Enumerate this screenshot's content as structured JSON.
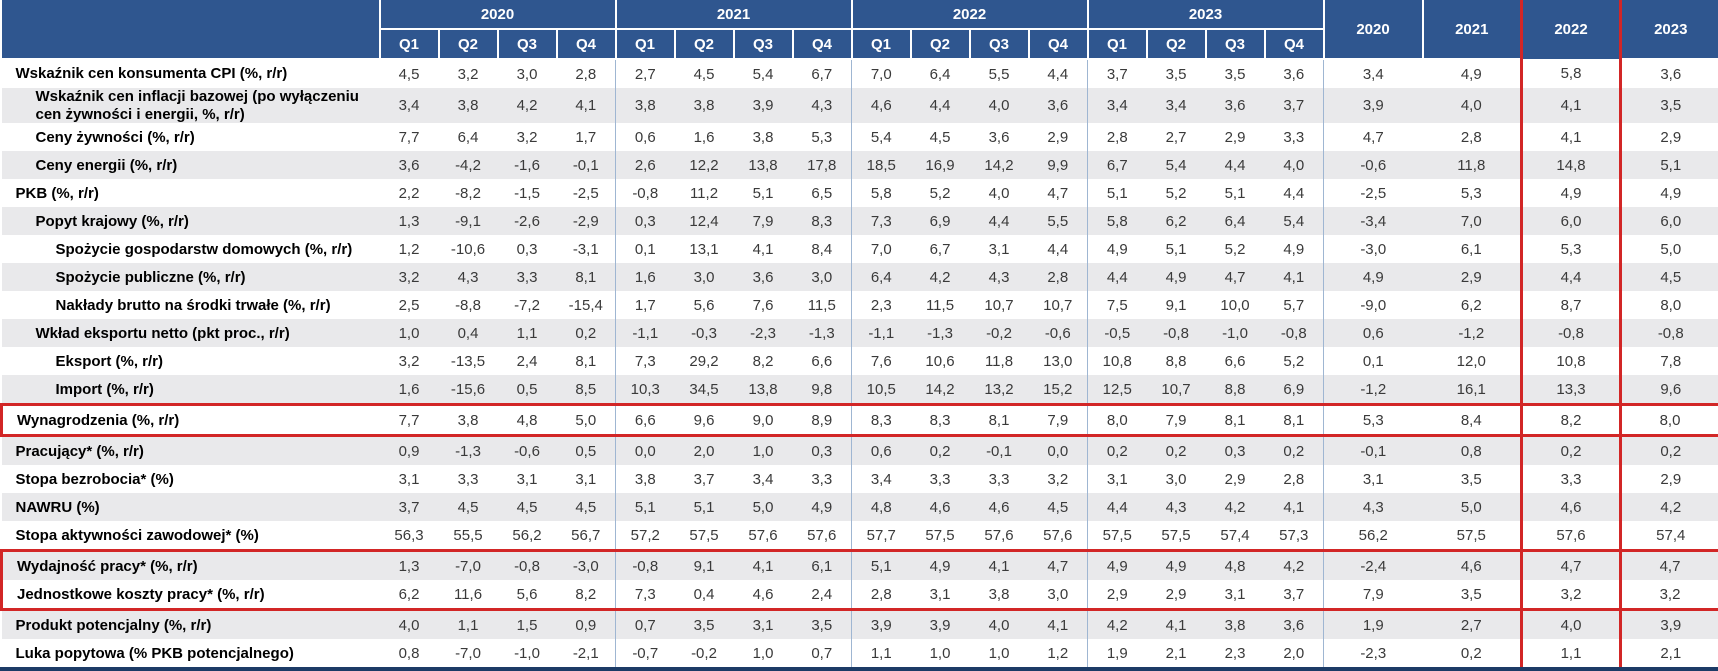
{
  "table": {
    "corner_label": "",
    "year_groups": [
      {
        "year": "2020",
        "quarters": [
          "Q1",
          "Q2",
          "Q3",
          "Q4"
        ]
      },
      {
        "year": "2021",
        "quarters": [
          "Q1",
          "Q2",
          "Q3",
          "Q4"
        ]
      },
      {
        "year": "2022",
        "quarters": [
          "Q1",
          "Q2",
          "Q3",
          "Q4"
        ]
      },
      {
        "year": "2023",
        "quarters": [
          "Q1",
          "Q2",
          "Q3",
          "Q4"
        ]
      }
    ],
    "annual_columns": [
      {
        "year": "2020",
        "highlighted": false
      },
      {
        "year": "2021",
        "highlighted": false
      },
      {
        "year": "2022",
        "highlighted": true
      },
      {
        "year": "2023",
        "highlighted": false
      }
    ],
    "rows": [
      {
        "label": "Wskaźnik cen konsumenta CPI (%, r/r)",
        "indent": 0,
        "box": [],
        "values": [
          "4,5",
          "3,2",
          "3,0",
          "2,8",
          "2,7",
          "4,5",
          "5,4",
          "6,7",
          "7,0",
          "6,4",
          "5,5",
          "4,4",
          "3,7",
          "3,5",
          "3,5",
          "3,6",
          "3,4",
          "4,9",
          "5,8",
          "3,6"
        ]
      },
      {
        "label": "Wskaźnik cen inflacji bazowej (po wyłączeniu cen żywności i energii, %, r/r)",
        "indent": 1,
        "box": [],
        "values": [
          "3,4",
          "3,8",
          "4,2",
          "4,1",
          "3,8",
          "3,8",
          "3,9",
          "4,3",
          "4,6",
          "4,4",
          "4,0",
          "3,6",
          "3,4",
          "3,4",
          "3,6",
          "3,7",
          "3,9",
          "4,0",
          "4,1",
          "3,5"
        ]
      },
      {
        "label": "Ceny żywności (%, r/r)",
        "indent": 1,
        "box": [],
        "values": [
          "7,7",
          "6,4",
          "3,2",
          "1,7",
          "0,6",
          "1,6",
          "3,8",
          "5,3",
          "5,4",
          "4,5",
          "3,6",
          "2,9",
          "2,8",
          "2,7",
          "2,9",
          "3,3",
          "4,7",
          "2,8",
          "4,1",
          "2,9"
        ]
      },
      {
        "label": "Ceny energii (%, r/r)",
        "indent": 1,
        "box": [],
        "values": [
          "3,6",
          "-4,2",
          "-1,6",
          "-0,1",
          "2,6",
          "12,2",
          "13,8",
          "17,8",
          "18,5",
          "16,9",
          "14,2",
          "9,9",
          "6,7",
          "5,4",
          "4,4",
          "4,0",
          "-0,6",
          "11,8",
          "14,8",
          "5,1"
        ]
      },
      {
        "label": "PKB (%, r/r)",
        "indent": 0,
        "box": [],
        "values": [
          "2,2",
          "-8,2",
          "-1,5",
          "-2,5",
          "-0,8",
          "11,2",
          "5,1",
          "6,5",
          "5,8",
          "5,2",
          "4,0",
          "4,7",
          "5,1",
          "5,2",
          "5,1",
          "4,4",
          "-2,5",
          "5,3",
          "4,9",
          "4,9"
        ]
      },
      {
        "label": "Popyt krajowy (%, r/r)",
        "indent": 1,
        "box": [],
        "values": [
          "1,3",
          "-9,1",
          "-2,6",
          "-2,9",
          "0,3",
          "12,4",
          "7,9",
          "8,3",
          "7,3",
          "6,9",
          "4,4",
          "5,5",
          "5,8",
          "6,2",
          "6,4",
          "5,4",
          "-3,4",
          "7,0",
          "6,0",
          "6,0"
        ]
      },
      {
        "label": "Spożycie gospodarstw domowych (%, r/r)",
        "indent": 2,
        "box": [],
        "values": [
          "1,2",
          "-10,6",
          "0,3",
          "-3,1",
          "0,1",
          "13,1",
          "4,1",
          "8,4",
          "7,0",
          "6,7",
          "3,1",
          "4,4",
          "4,9",
          "5,1",
          "5,2",
          "4,9",
          "-3,0",
          "6,1",
          "5,3",
          "5,0"
        ]
      },
      {
        "label": "Spożycie publiczne (%, r/r)",
        "indent": 2,
        "box": [],
        "values": [
          "3,2",
          "4,3",
          "3,3",
          "8,1",
          "1,6",
          "3,0",
          "3,6",
          "3,0",
          "6,4",
          "4,2",
          "4,3",
          "2,8",
          "4,4",
          "4,9",
          "4,7",
          "4,1",
          "4,9",
          "2,9",
          "4,4",
          "4,5"
        ]
      },
      {
        "label": "Nakłady brutto na środki trwałe (%, r/r)",
        "indent": 2,
        "box": [],
        "values": [
          "2,5",
          "-8,8",
          "-7,2",
          "-15,4",
          "1,7",
          "5,6",
          "7,6",
          "11,5",
          "2,3",
          "11,5",
          "10,7",
          "10,7",
          "7,5",
          "9,1",
          "10,0",
          "5,7",
          "-9,0",
          "6,2",
          "8,7",
          "8,0"
        ]
      },
      {
        "label": "Wkład eksportu netto (pkt proc., r/r)",
        "indent": 1,
        "box": [],
        "values": [
          "1,0",
          "0,4",
          "1,1",
          "0,2",
          "-1,1",
          "-0,3",
          "-2,3",
          "-1,3",
          "-1,1",
          "-1,3",
          "-0,2",
          "-0,6",
          "-0,5",
          "-0,8",
          "-1,0",
          "-0,8",
          "0,6",
          "-1,2",
          "-0,8",
          "-0,8"
        ]
      },
      {
        "label": "Eksport (%, r/r)",
        "indent": 2,
        "box": [],
        "values": [
          "3,2",
          "-13,5",
          "2,4",
          "8,1",
          "7,3",
          "29,2",
          "8,2",
          "6,6",
          "7,6",
          "10,6",
          "11,8",
          "13,0",
          "10,8",
          "8,8",
          "6,6",
          "5,2",
          "0,1",
          "12,0",
          "10,8",
          "7,8"
        ]
      },
      {
        "label": "Import (%, r/r)",
        "indent": 2,
        "box": [],
        "values": [
          "1,6",
          "-15,6",
          "0,5",
          "8,5",
          "10,3",
          "34,5",
          "13,8",
          "9,8",
          "10,5",
          "14,2",
          "13,2",
          "15,2",
          "12,5",
          "10,7",
          "8,8",
          "6,9",
          "-1,2",
          "16,1",
          "13,3",
          "9,6"
        ]
      },
      {
        "label": "Wynagrodzenia (%, r/r)",
        "indent": 0,
        "box": [
          "top",
          "bottom"
        ],
        "values": [
          "7,7",
          "3,8",
          "4,8",
          "5,0",
          "6,6",
          "9,6",
          "9,0",
          "8,9",
          "8,3",
          "8,3",
          "8,1",
          "7,9",
          "8,0",
          "7,9",
          "8,1",
          "8,1",
          "5,3",
          "8,4",
          "8,2",
          "8,0"
        ]
      },
      {
        "label": "Pracujący* (%, r/r)",
        "indent": 0,
        "box": [],
        "values": [
          "0,9",
          "-1,3",
          "-0,6",
          "0,5",
          "0,0",
          "2,0",
          "1,0",
          "0,3",
          "0,6",
          "0,2",
          "-0,1",
          "0,0",
          "0,2",
          "0,2",
          "0,3",
          "0,2",
          "-0,1",
          "0,8",
          "0,2",
          "0,2"
        ]
      },
      {
        "label": "Stopa bezrobocia* (%)",
        "indent": 0,
        "box": [],
        "values": [
          "3,1",
          "3,3",
          "3,1",
          "3,1",
          "3,8",
          "3,7",
          "3,4",
          "3,3",
          "3,4",
          "3,3",
          "3,3",
          "3,2",
          "3,1",
          "3,0",
          "2,9",
          "2,8",
          "3,1",
          "3,5",
          "3,3",
          "2,9"
        ]
      },
      {
        "label": "NAWRU (%)",
        "indent": 0,
        "box": [],
        "values": [
          "3,7",
          "4,5",
          "4,5",
          "4,5",
          "5,1",
          "5,1",
          "5,0",
          "4,9",
          "4,8",
          "4,6",
          "4,6",
          "4,5",
          "4,4",
          "4,3",
          "4,2",
          "4,1",
          "4,3",
          "5,0",
          "4,6",
          "4,2"
        ]
      },
      {
        "label": "Stopa aktywności zawodowej* (%)",
        "indent": 0,
        "box": [],
        "values": [
          "56,3",
          "55,5",
          "56,2",
          "56,7",
          "57,2",
          "57,5",
          "57,6",
          "57,6",
          "57,7",
          "57,5",
          "57,6",
          "57,6",
          "57,5",
          "57,5",
          "57,4",
          "57,3",
          "56,2",
          "57,5",
          "57,6",
          "57,4"
        ]
      },
      {
        "label": "Wydajność pracy* (%, r/r)",
        "indent": 0,
        "box": [
          "top"
        ],
        "values": [
          "1,3",
          "-7,0",
          "-0,8",
          "-3,0",
          "-0,8",
          "9,1",
          "4,1",
          "6,1",
          "5,1",
          "4,9",
          "4,1",
          "4,7",
          "4,9",
          "4,9",
          "4,8",
          "4,2",
          "-2,4",
          "4,6",
          "4,7",
          "4,7"
        ]
      },
      {
        "label": "Jednostkowe koszty pracy* (%, r/r)",
        "indent": 0,
        "box": [
          "bottom"
        ],
        "values": [
          "6,2",
          "11,6",
          "5,6",
          "8,2",
          "7,3",
          "0,4",
          "4,6",
          "2,4",
          "2,8",
          "3,1",
          "3,8",
          "3,0",
          "2,9",
          "2,9",
          "3,1",
          "3,7",
          "7,9",
          "3,5",
          "3,2",
          "3,2"
        ]
      },
      {
        "label": "Produkt potencjalny (%, r/r)",
        "indent": 0,
        "box": [],
        "values": [
          "4,0",
          "1,1",
          "1,5",
          "0,9",
          "0,7",
          "3,5",
          "3,1",
          "3,5",
          "3,9",
          "3,9",
          "4,0",
          "4,1",
          "4,2",
          "4,1",
          "3,8",
          "3,6",
          "1,9",
          "2,7",
          "4,0",
          "3,9"
        ]
      },
      {
        "label": "Luka popytowa (% PKB potencjalnego)",
        "indent": 0,
        "box": [],
        "values": [
          "0,8",
          "-7,0",
          "-1,0",
          "-2,1",
          "-0,7",
          "-0,2",
          "1,0",
          "0,7",
          "1,1",
          "1,0",
          "1,0",
          "1,2",
          "1,9",
          "2,1",
          "2,3",
          "2,0",
          "-2,3",
          "0,2",
          "1,1",
          "2,1"
        ]
      }
    ]
  },
  "highlights": {
    "highlighted_rows": [
      "Wynagrodzenia (%, r/r)",
      "Wydajność pracy* (%, r/r)",
      "Jednostkowe koszty pracy* (%, r/r)"
    ],
    "highlighted_annual_column": "2022"
  },
  "colors": {
    "header_bg": "#2F568F",
    "stripe_bg": "#E9E9EB",
    "highlight_red": "#D22626",
    "group_separator": "#9FB6D2",
    "bottom_bar": "#1C3B66"
  }
}
